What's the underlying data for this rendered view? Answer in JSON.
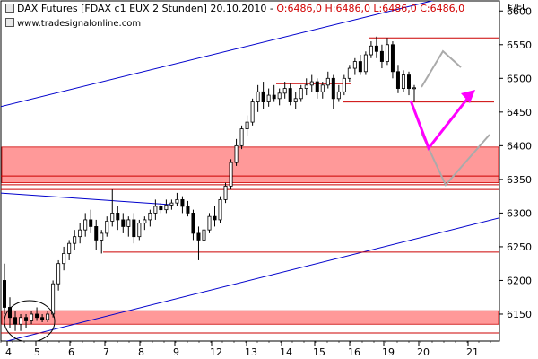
{
  "header": {
    "instrument": "DAX Futures [FDAX c1 EUX  2 Stunden] 20.10.2010 - ",
    "ohlc": "O:6486,0 H:6486,0 L:6486,0 C:6486,0",
    "website": "www.tradesignalonline.com",
    "unit": "€/EL"
  },
  "chart_data": {
    "type": "candlestick",
    "title": "DAX Futures [FDAX c1 EUX  2 Stunden] 20.10.2010",
    "ylim": [
      6110,
      6615
    ],
    "y_ticks": [
      6150,
      6200,
      6250,
      6300,
      6350,
      6400,
      6450,
      6500,
      6550,
      6600
    ],
    "x_tick_labels": [
      "4",
      "5",
      "6",
      "7",
      "8",
      "9",
      "12",
      "13",
      "14",
      "15",
      "16",
      "19",
      "20",
      "21"
    ],
    "candles": [
      [
        6200,
        6225,
        6150,
        6160
      ],
      [
        6160,
        6175,
        6130,
        6145
      ],
      [
        6145,
        6155,
        6125,
        6135
      ],
      [
        6135,
        6150,
        6125,
        6145
      ],
      [
        6145,
        6150,
        6130,
        6140
      ],
      [
        6140,
        6155,
        6135,
        6150
      ],
      [
        6150,
        6160,
        6140,
        6145
      ],
      [
        6145,
        6150,
        6138,
        6142
      ],
      [
        6142,
        6155,
        6138,
        6150
      ],
      [
        6150,
        6200,
        6145,
        6195
      ],
      [
        6195,
        6230,
        6185,
        6225
      ],
      [
        6225,
        6250,
        6215,
        6240
      ],
      [
        6240,
        6260,
        6230,
        6255
      ],
      [
        6255,
        6275,
        6245,
        6265
      ],
      [
        6265,
        6285,
        6255,
        6275
      ],
      [
        6275,
        6300,
        6265,
        6290
      ],
      [
        6290,
        6305,
        6270,
        6280
      ],
      [
        6280,
        6290,
        6245,
        6260
      ],
      [
        6260,
        6275,
        6240,
        6270
      ],
      [
        6270,
        6295,
        6265,
        6288
      ],
      [
        6288,
        6335,
        6280,
        6300
      ],
      [
        6300,
        6310,
        6275,
        6290
      ],
      [
        6290,
        6300,
        6270,
        6280
      ],
      [
        6280,
        6295,
        6265,
        6290
      ],
      [
        6290,
        6300,
        6255,
        6265
      ],
      [
        6265,
        6290,
        6260,
        6285
      ],
      [
        6285,
        6295,
        6275,
        6290
      ],
      [
        6290,
        6305,
        6280,
        6300
      ],
      [
        6300,
        6320,
        6290,
        6310
      ],
      [
        6310,
        6315,
        6300,
        6305
      ],
      [
        6305,
        6320,
        6300,
        6312
      ],
      [
        6312,
        6320,
        6305,
        6315
      ],
      [
        6315,
        6330,
        6310,
        6320
      ],
      [
        6320,
        6325,
        6300,
        6310
      ],
      [
        6310,
        6318,
        6295,
        6300
      ],
      [
        6300,
        6305,
        6260,
        6270
      ],
      [
        6270,
        6280,
        6230,
        6260
      ],
      [
        6260,
        6280,
        6255,
        6275
      ],
      [
        6275,
        6300,
        6270,
        6295
      ],
      [
        6295,
        6310,
        6280,
        6290
      ],
      [
        6290,
        6325,
        6285,
        6320
      ],
      [
        6320,
        6345,
        6315,
        6340
      ],
      [
        6340,
        6380,
        6335,
        6375
      ],
      [
        6375,
        6410,
        6370,
        6400
      ],
      [
        6400,
        6430,
        6395,
        6425
      ],
      [
        6425,
        6445,
        6415,
        6435
      ],
      [
        6435,
        6470,
        6430,
        6465
      ],
      [
        6465,
        6490,
        6450,
        6480
      ],
      [
        6480,
        6495,
        6455,
        6465
      ],
      [
        6465,
        6485,
        6458,
        6475
      ],
      [
        6475,
        6490,
        6465,
        6470
      ],
      [
        6470,
        6485,
        6460,
        6478
      ],
      [
        6478,
        6495,
        6470,
        6485
      ],
      [
        6485,
        6492,
        6460,
        6465
      ],
      [
        6465,
        6480,
        6455,
        6470
      ],
      [
        6470,
        6490,
        6465,
        6485
      ],
      [
        6485,
        6500,
        6475,
        6490
      ],
      [
        6490,
        6505,
        6480,
        6495
      ],
      [
        6495,
        6500,
        6470,
        6480
      ],
      [
        6480,
        6495,
        6470,
        6490
      ],
      [
        6490,
        6510,
        6485,
        6500
      ],
      [
        6500,
        6505,
        6455,
        6470
      ],
      [
        6470,
        6490,
        6465,
        6480
      ],
      [
        6480,
        6505,
        6475,
        6500
      ],
      [
        6500,
        6520,
        6495,
        6515
      ],
      [
        6515,
        6530,
        6505,
        6525
      ],
      [
        6525,
        6535,
        6505,
        6510
      ],
      [
        6510,
        6540,
        6505,
        6535
      ],
      [
        6535,
        6555,
        6530,
        6548
      ],
      [
        6548,
        6562,
        6530,
        6540
      ],
      [
        6540,
        6550,
        6515,
        6525
      ],
      [
        6525,
        6560,
        6520,
        6550
      ],
      [
        6550,
        6555,
        6500,
        6510
      ],
      [
        6510,
        6520,
        6478,
        6485
      ],
      [
        6485,
        6512,
        6480,
        6505
      ],
      [
        6505,
        6510,
        6475,
        6485
      ],
      [
        6485,
        6490,
        6465,
        6486
      ]
    ],
    "horizontal_lines": [
      6560,
      6492,
      6465,
      6355,
      6342,
      6335,
      6242,
      6122
    ],
    "zones": [
      [
        6345,
        6398
      ],
      [
        6135,
        6155
      ]
    ],
    "zone_color": "#ff9999",
    "support_line_color": "#cc0000",
    "trendline_color": "#0000cc",
    "projection_color": "#ff00ff",
    "scenario_color": "#aaaaaa",
    "candle_up_color": "#ffffff",
    "candle_down_color": "#000000"
  }
}
